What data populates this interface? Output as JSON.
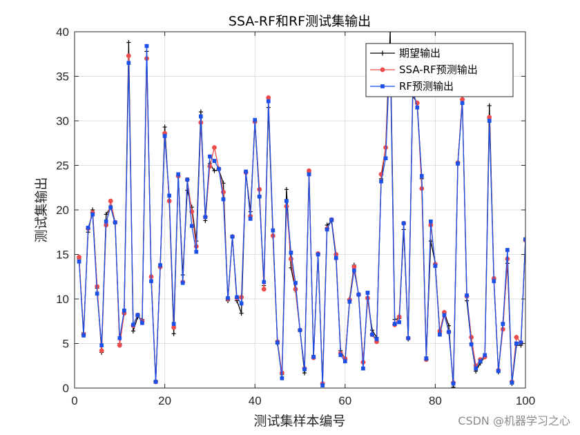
{
  "chart_data": {
    "type": "line",
    "title": "SSA-RF和RF测试集输出",
    "xlabel": "测试集样本编号",
    "ylabel": "测试集输出",
    "xlim": [
      0,
      100
    ],
    "ylim": [
      0,
      40
    ],
    "xticks": [
      "0",
      "20",
      "40",
      "60",
      "80",
      "100"
    ],
    "yticks": [
      "0",
      "5",
      "10",
      "15",
      "20",
      "25",
      "30",
      "35",
      "40"
    ],
    "grid": true,
    "legend_position": "top-right",
    "x": [
      1,
      2,
      3,
      4,
      5,
      6,
      7,
      8,
      9,
      10,
      11,
      12,
      13,
      14,
      15,
      16,
      17,
      18,
      19,
      20,
      21,
      22,
      23,
      24,
      25,
      26,
      27,
      28,
      29,
      30,
      31,
      32,
      33,
      34,
      35,
      36,
      37,
      38,
      39,
      40,
      41,
      42,
      43,
      44,
      45,
      46,
      47,
      48,
      49,
      50,
      51,
      52,
      53,
      54,
      55,
      56,
      57,
      58,
      59,
      60,
      61,
      62,
      63,
      64,
      65,
      66,
      67,
      68,
      69,
      70,
      71,
      72,
      73,
      74,
      75,
      76,
      77,
      78,
      79,
      80,
      81,
      82,
      83,
      84,
      85,
      86,
      87,
      88,
      89,
      90,
      91,
      92,
      93,
      94,
      95,
      96,
      97,
      98,
      99,
      100
    ],
    "series": [
      {
        "name": "期望输出",
        "color": "#000000",
        "marker": "plus",
        "values": [
          14.5,
          6.2,
          17.5,
          20.0,
          11.2,
          4.0,
          19.5,
          20.3,
          18.5,
          5.0,
          8.5,
          38.8,
          6.4,
          8.0,
          7.7,
          37.8,
          12.5,
          0.8,
          13.5,
          29.3,
          21.0,
          6.1,
          23.8,
          12.7,
          22.2,
          20.3,
          16.5,
          31.0,
          18.8,
          25.2,
          24.4,
          24.5,
          23.0,
          9.8,
          17.0,
          9.8,
          8.4,
          24.2,
          19.8,
          29.8,
          21.5,
          11.5,
          31.5,
          17.0,
          5.0,
          1.5,
          22.3,
          13.5,
          11.0,
          6.5,
          1.7,
          24.2,
          3.6,
          15.0,
          0.5,
          18.3,
          18.7,
          14.5,
          4.2,
          3.2,
          10.0,
          13.8,
          10.4,
          2.8,
          10.0,
          6.5,
          5.7,
          23.5,
          27.0,
          40.0,
          7.7,
          7.8,
          17.8,
          5.5,
          32.8,
          32.0,
          23.5,
          3.5,
          16.5,
          14.0,
          6.2,
          8.5,
          7.0,
          0.1,
          25.2,
          32.5,
          9.8,
          5.0,
          1.9,
          2.8,
          3.5,
          31.7,
          12.2,
          1.8,
          7.3,
          14.0,
          0.5,
          4.8,
          4.8,
          16.7
        ]
      },
      {
        "name": "SSA-RF预测输出",
        "color": "#ee4b4b",
        "marker": "circle",
        "values": [
          14.7,
          6.0,
          17.9,
          19.7,
          11.4,
          4.2,
          18.3,
          21.0,
          18.6,
          4.8,
          8.4,
          37.3,
          7.0,
          8.2,
          7.5,
          37.0,
          12.5,
          0.7,
          13.6,
          28.6,
          21.0,
          6.8,
          23.8,
          11.9,
          23.4,
          19.8,
          15.9,
          29.8,
          19.2,
          24.9,
          27.0,
          24.6,
          22.0,
          10.0,
          17.0,
          10.1,
          10.2,
          24.2,
          19.3,
          29.9,
          22.3,
          11.1,
          32.6,
          17.1,
          5.2,
          1.7,
          20.4,
          14.5,
          11.1,
          6.5,
          2.2,
          24.4,
          3.4,
          15.1,
          0.5,
          17.9,
          18.9,
          15.0,
          3.9,
          3.3,
          9.9,
          13.6,
          10.5,
          2.9,
          10.1,
          6.0,
          5.2,
          24.0,
          27.0,
          38.0,
          7.1,
          8.0,
          18.5,
          5.6,
          33.0,
          32.0,
          22.4,
          3.2,
          18.3,
          13.9,
          6.4,
          8.5,
          6.3,
          0.6,
          25.3,
          32.4,
          10.3,
          5.7,
          2.5,
          3.2,
          3.5,
          30.4,
          12.3,
          2.0,
          6.6,
          14.5,
          0.7,
          5.7,
          5.1,
          16.6
        ]
      },
      {
        "name": "RF预测输出",
        "color": "#1a4fe8",
        "marker": "square",
        "values": [
          14.2,
          5.9,
          18.0,
          19.5,
          10.6,
          4.8,
          18.7,
          20.3,
          18.6,
          5.6,
          8.7,
          36.5,
          7.1,
          8.2,
          7.3,
          38.4,
          12.0,
          0.7,
          13.8,
          28.3,
          21.6,
          7.2,
          24.0,
          11.8,
          23.4,
          18.2,
          15.3,
          30.5,
          19.2,
          26.0,
          25.5,
          24.6,
          21.2,
          10.1,
          17.0,
          10.2,
          9.5,
          24.3,
          19.0,
          30.1,
          21.5,
          11.9,
          32.2,
          17.7,
          5.1,
          1.1,
          21.0,
          15.2,
          11.8,
          6.5,
          2.1,
          24.0,
          3.5,
          15.0,
          0.3,
          17.8,
          18.9,
          14.6,
          3.7,
          3.0,
          9.7,
          13.2,
          10.5,
          2.2,
          10.7,
          6.0,
          5.5,
          23.2,
          25.8,
          38.0,
          7.2,
          7.4,
          18.5,
          5.6,
          33.5,
          31.5,
          23.8,
          3.3,
          18.7,
          13.7,
          6.0,
          8.2,
          6.3,
          0.5,
          25.2,
          32.0,
          10.4,
          4.9,
          2.2,
          3.0,
          3.7,
          30.0,
          12.0,
          1.9,
          7.2,
          15.5,
          0.6,
          5.0,
          5.1,
          16.7
        ]
      }
    ]
  },
  "watermark": "CSDN @机器学习之心"
}
